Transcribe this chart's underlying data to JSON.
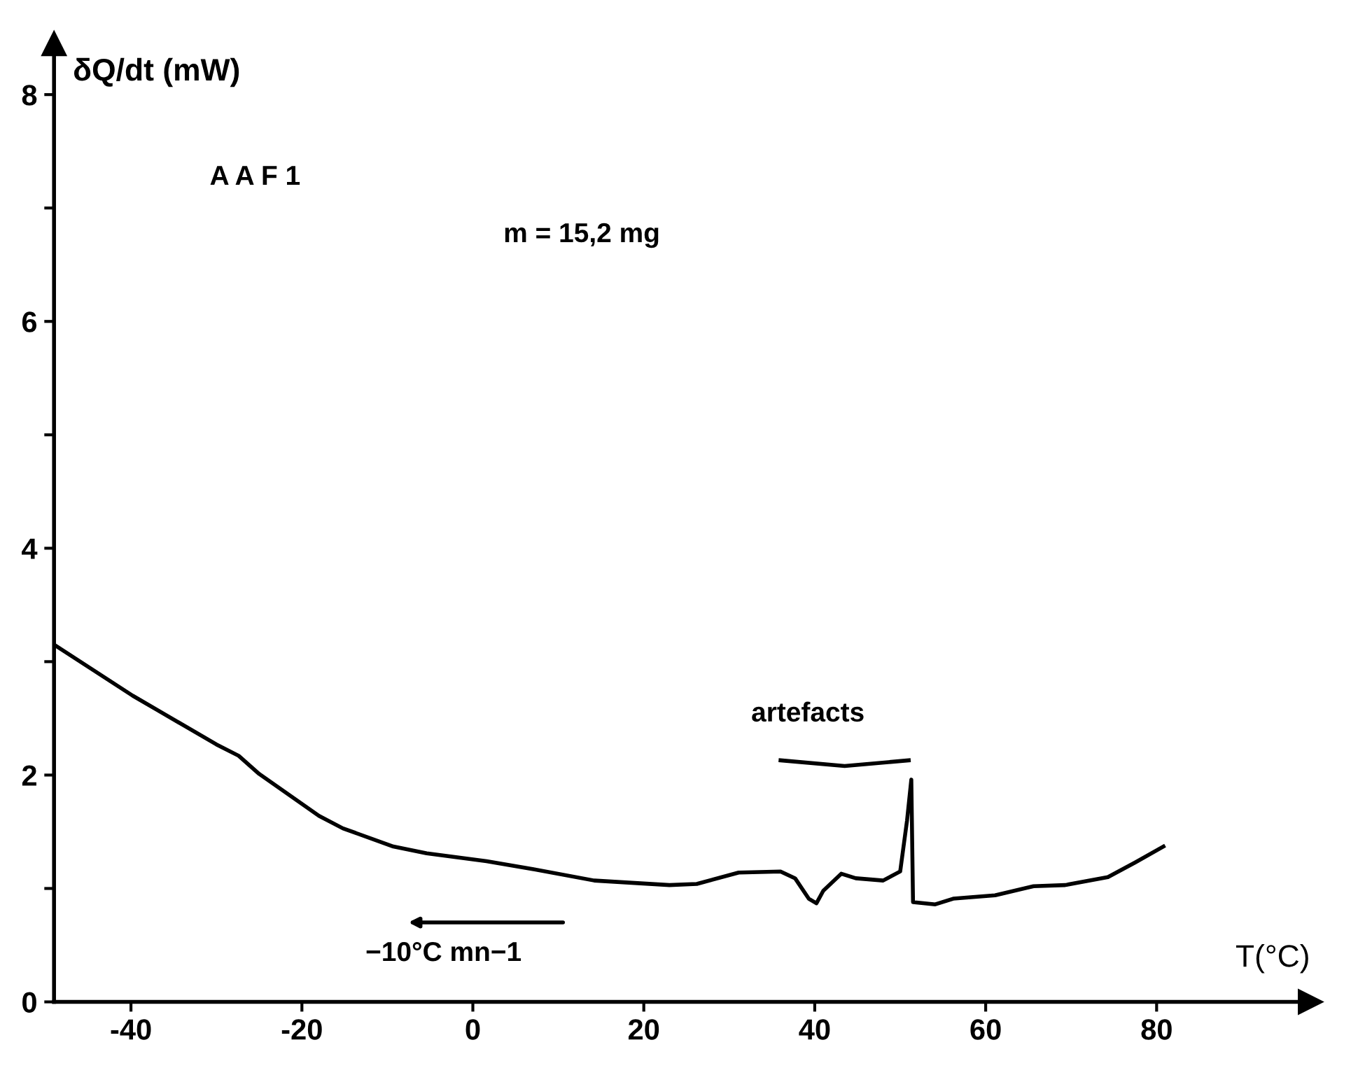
{
  "chart_data": {
    "type": "line",
    "xlabel": "T(°C)",
    "ylabel": "δQ/dt (mW)",
    "x": [
      -49,
      -39.8,
      -30,
      -27.4,
      -25,
      -18,
      -15.2,
      -9.3,
      -5.4,
      1.6,
      7.1,
      14.2,
      23,
      26.2,
      31.1,
      36,
      37.7,
      39.3,
      40.2,
      41,
      43.1,
      44.8,
      48,
      50,
      50.8,
      51.3,
      51.5,
      54.1,
      56.2,
      61.1,
      65.6,
      69.3,
      74.3,
      77.5,
      80.8
    ],
    "series": [
      {
        "color": "#000000",
        "values": [
          3.15,
          2.7,
          2.27,
          2.17,
          2.01,
          1.64,
          1.53,
          1.37,
          1.31,
          1.24,
          1.17,
          1.07,
          1.03,
          1.04,
          1.14,
          1.15,
          1.09,
          0.91,
          0.87,
          0.98,
          1.13,
          1.09,
          1.07,
          1.15,
          1.6,
          1.96,
          0.88,
          0.86,
          0.91,
          0.94,
          1.02,
          1.03,
          1.1,
          1.23,
          1.37
        ]
      }
    ],
    "xlim": [
      -49,
      98
    ],
    "ylim": [
      0,
      8.45
    ],
    "xticks": [
      -40,
      -20,
      0,
      20,
      40,
      60,
      80
    ],
    "yticks": [
      0,
      {
        "value": 1,
        "label": null
      },
      2,
      {
        "value": 3,
        "label": null
      },
      4,
      {
        "value": 5,
        "label": null
      },
      6,
      {
        "value": 7,
        "label": null
      },
      8
    ],
    "annotations": [
      "A A F 1",
      "m = 15,2 mg",
      "artefacts",
      "−10°C mn−1"
    ],
    "grid": false,
    "legend": false,
    "marker": "none",
    "line_style": "solid"
  }
}
